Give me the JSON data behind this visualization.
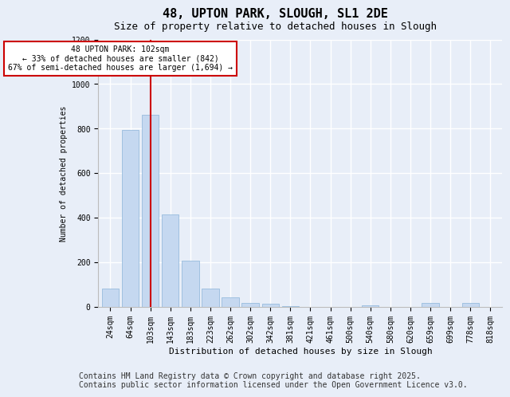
{
  "title": "48, UPTON PARK, SLOUGH, SL1 2DE",
  "subtitle": "Size of property relative to detached houses in Slough",
  "xlabel": "Distribution of detached houses by size in Slough",
  "ylabel": "Number of detached properties",
  "categories": [
    "24sqm",
    "64sqm",
    "103sqm",
    "143sqm",
    "183sqm",
    "223sqm",
    "262sqm",
    "302sqm",
    "342sqm",
    "381sqm",
    "421sqm",
    "461sqm",
    "500sqm",
    "540sqm",
    "580sqm",
    "620sqm",
    "659sqm",
    "699sqm",
    "778sqm",
    "818sqm"
  ],
  "values": [
    80,
    795,
    860,
    415,
    205,
    80,
    40,
    15,
    13,
    2,
    0,
    0,
    0,
    5,
    0,
    0,
    15,
    0,
    15,
    0
  ],
  "bar_color": "#c5d8f0",
  "bar_edge_color": "#8ab4d8",
  "vline_x_index": 2,
  "vline_color": "#cc0000",
  "annotation_text": "48 UPTON PARK: 102sqm\n← 33% of detached houses are smaller (842)\n67% of semi-detached houses are larger (1,694) →",
  "annotation_box_color": "#ffffff",
  "annotation_box_edge_color": "#cc0000",
  "ylim": [
    0,
    1200
  ],
  "yticks": [
    0,
    200,
    400,
    600,
    800,
    1000,
    1200
  ],
  "footer_line1": "Contains HM Land Registry data © Crown copyright and database right 2025.",
  "footer_line2": "Contains public sector information licensed under the Open Government Licence v3.0.",
  "bg_color": "#e8eef8",
  "plot_bg_color": "#e8eef8",
  "grid_color": "#ffffff",
  "title_fontsize": 11,
  "subtitle_fontsize": 9,
  "label_fontsize": 7,
  "tick_fontsize": 7,
  "footer_fontsize": 7
}
